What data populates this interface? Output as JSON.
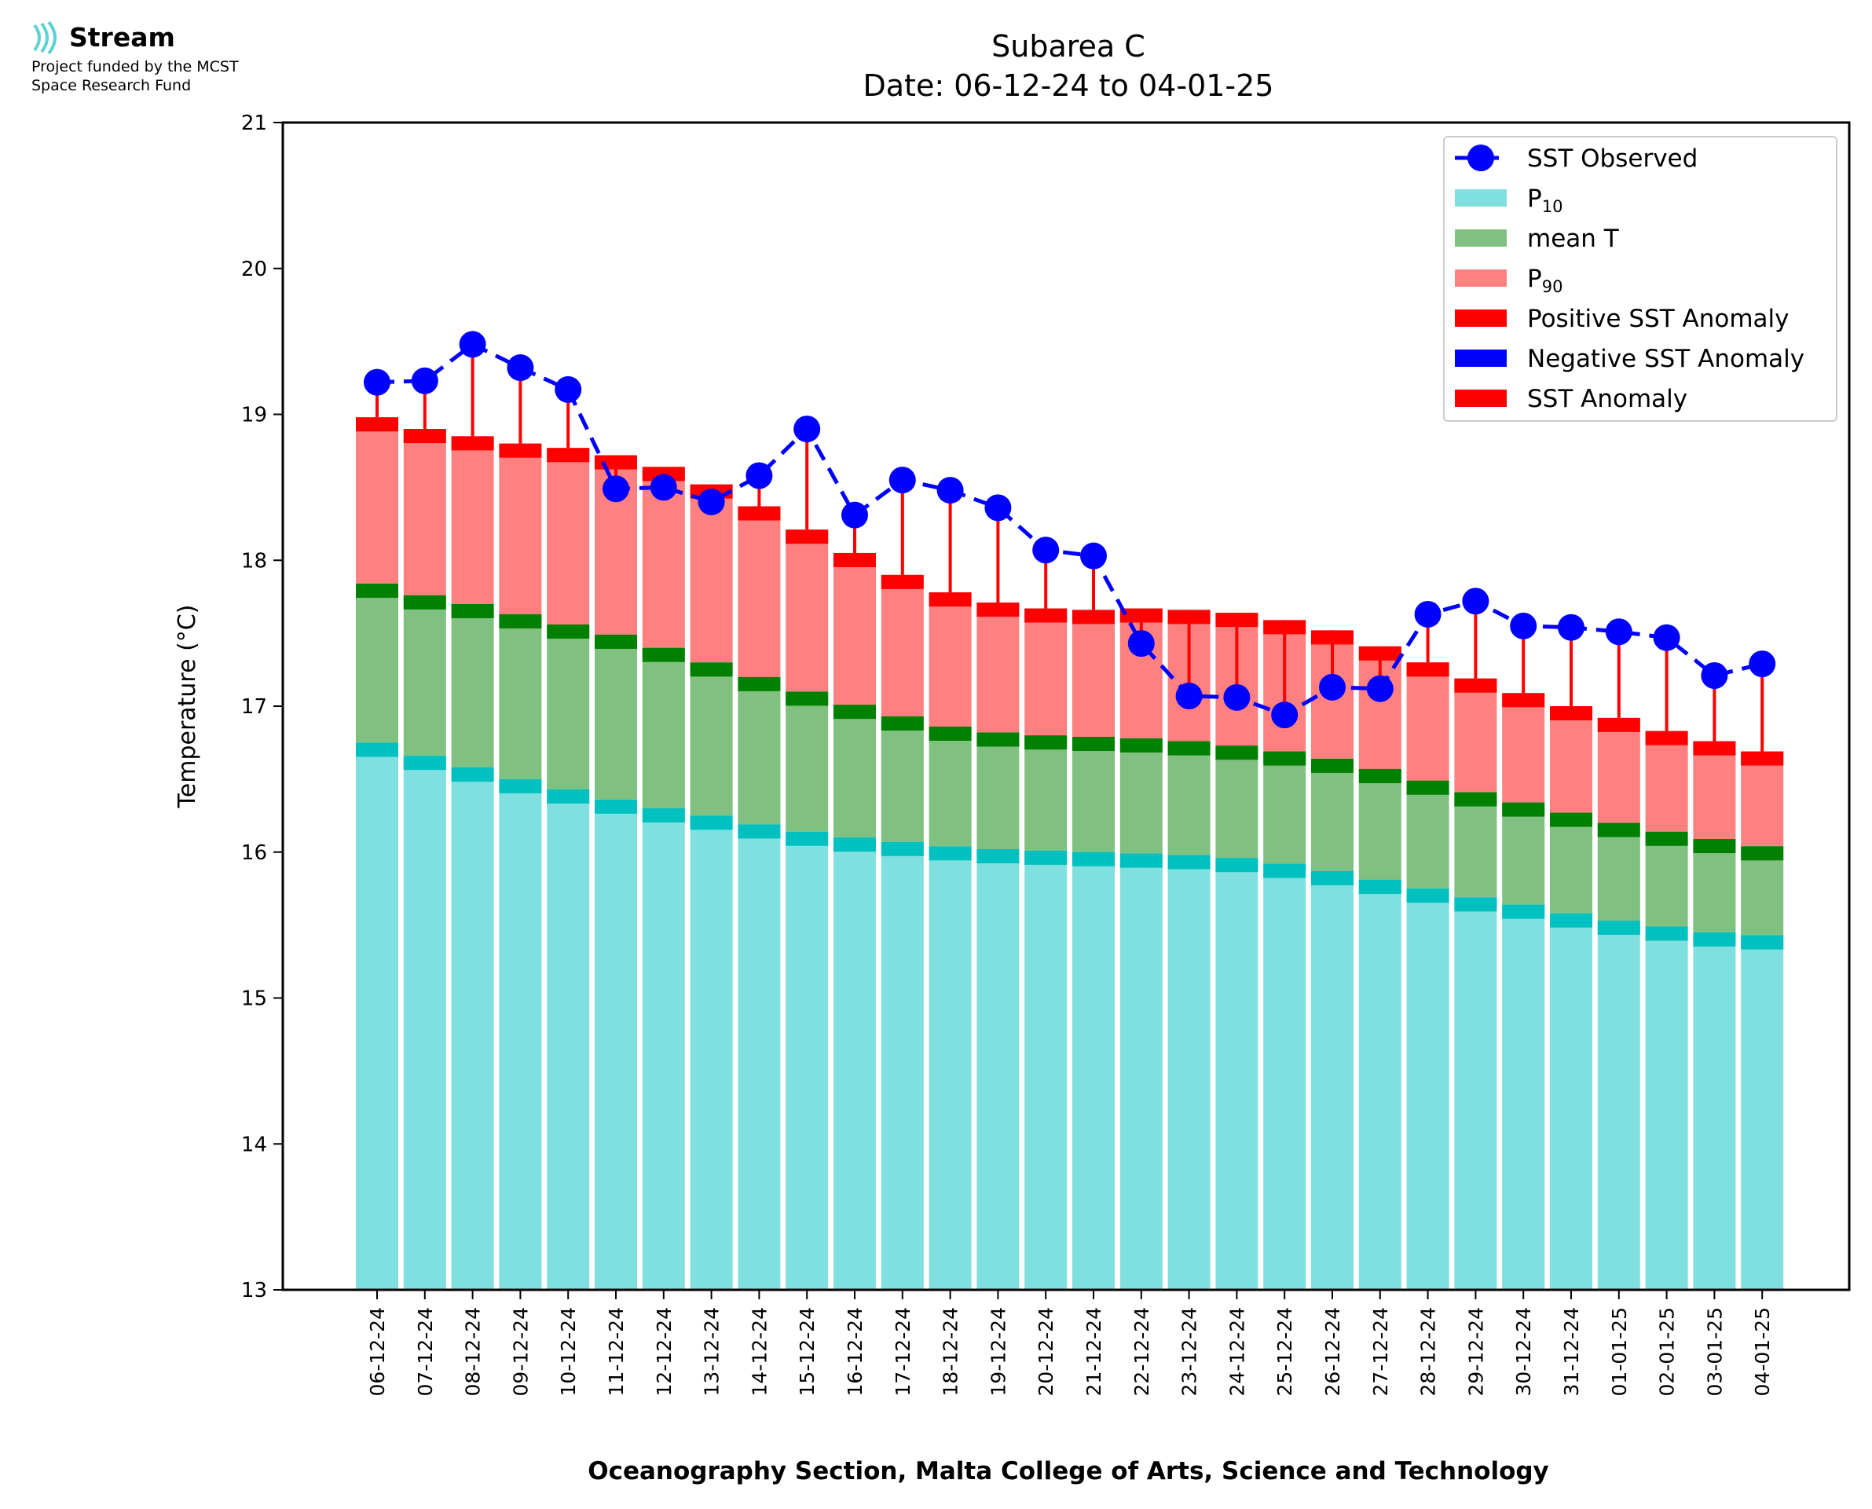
{
  "header": {
    "logo_name": "Stream",
    "funding_line1": "Project funded by the MCST",
    "funding_line2": "Space Research Fund"
  },
  "chart_data": {
    "type": "bar",
    "title": "Subarea C",
    "subtitle": "Date: 06-12-24 to 04-01-25",
    "xlabel": "Oceanography Section, Malta College of Arts, Science and Technology",
    "ylabel": "Temperature (°C)",
    "ylim": [
      13,
      21
    ],
    "yticks": [
      13,
      14,
      15,
      16,
      17,
      18,
      19,
      20,
      21
    ],
    "grid": false,
    "legend_position": "top-right",
    "categories": [
      "06-12-24",
      "07-12-24",
      "08-12-24",
      "09-12-24",
      "10-12-24",
      "11-12-24",
      "12-12-24",
      "13-12-24",
      "14-12-24",
      "15-12-24",
      "16-12-24",
      "17-12-24",
      "18-12-24",
      "19-12-24",
      "20-12-24",
      "21-12-24",
      "22-12-24",
      "23-12-24",
      "24-12-24",
      "25-12-24",
      "26-12-24",
      "27-12-24",
      "28-12-24",
      "29-12-24",
      "30-12-24",
      "31-12-24",
      "01-01-25",
      "02-01-25",
      "03-01-25",
      "04-01-25"
    ],
    "series": [
      {
        "name": "P",
        "subscript": "10",
        "color": "#80dfdf",
        "edge_color": "#00c0c0",
        "values": [
          16.75,
          16.66,
          16.58,
          16.5,
          16.43,
          16.36,
          16.3,
          16.25,
          16.19,
          16.14,
          16.1,
          16.07,
          16.04,
          16.02,
          16.01,
          16.0,
          15.99,
          15.98,
          15.96,
          15.92,
          15.87,
          15.81,
          15.75,
          15.69,
          15.64,
          15.58,
          15.53,
          15.49,
          15.45,
          15.43
        ]
      },
      {
        "name": "mean T",
        "color": "#80c080",
        "edge_color": "#008000",
        "values": [
          17.84,
          17.76,
          17.7,
          17.63,
          17.56,
          17.49,
          17.4,
          17.3,
          17.2,
          17.1,
          17.01,
          16.93,
          16.86,
          16.82,
          16.8,
          16.79,
          16.78,
          16.76,
          16.73,
          16.69,
          16.64,
          16.57,
          16.49,
          16.41,
          16.34,
          16.27,
          16.2,
          16.14,
          16.09,
          16.04
        ]
      },
      {
        "name": "P",
        "subscript": "90",
        "color": "#ff8080",
        "edge_color": "#ff0000",
        "values": [
          18.98,
          18.9,
          18.85,
          18.8,
          18.77,
          18.72,
          18.64,
          18.52,
          18.37,
          18.21,
          18.05,
          17.9,
          17.78,
          17.71,
          17.67,
          17.66,
          17.67,
          17.66,
          17.64,
          17.59,
          17.52,
          17.41,
          17.3,
          17.19,
          17.09,
          17.0,
          16.92,
          16.83,
          16.76,
          16.69
        ]
      },
      {
        "name": "SST Observed",
        "color": "#0000ff",
        "values": [
          19.22,
          19.23,
          19.48,
          19.32,
          19.17,
          18.49,
          18.5,
          18.4,
          18.58,
          18.9,
          18.31,
          18.55,
          18.48,
          18.36,
          18.07,
          18.03,
          17.43,
          17.07,
          17.06,
          16.94,
          17.13,
          17.12,
          17.63,
          17.72,
          17.55,
          17.54,
          17.51,
          17.47,
          17.21,
          17.29
        ]
      }
    ],
    "legend": [
      {
        "label": "SST Observed",
        "kind": "line-marker",
        "color": "#0000ff"
      },
      {
        "label": "P",
        "subscript": "10",
        "kind": "patch",
        "color": "#80dfdf"
      },
      {
        "label": "mean T",
        "kind": "patch",
        "color": "#80c080"
      },
      {
        "label": "P",
        "subscript": "90",
        "kind": "patch",
        "color": "#ff8080"
      },
      {
        "label": "Positive SST Anomaly",
        "kind": "patch",
        "color": "#ff0000"
      },
      {
        "label": "Negative SST Anomaly",
        "kind": "patch",
        "color": "#0000ff"
      },
      {
        "label": "SST Anomaly",
        "kind": "patch",
        "color": "#ff0000"
      }
    ],
    "anomaly_color": "#ff0000"
  }
}
